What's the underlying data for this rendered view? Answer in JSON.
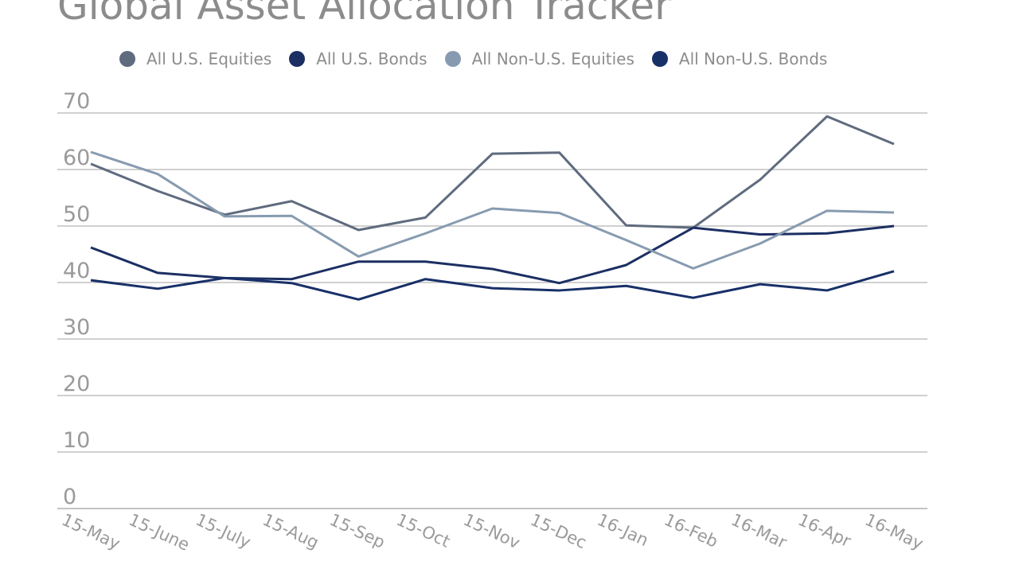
{
  "chart_data": {
    "type": "line",
    "title": "Global Asset Allocation Tracker",
    "categories": [
      "15-May",
      "15-June",
      "15-July",
      "15-Aug",
      "15-Sep",
      "15-Oct",
      "15-Nov",
      "15-Dec",
      "16-Jan",
      "16-Feb",
      "16-Mar",
      "16-Apr",
      "16-May"
    ],
    "ylim": [
      0,
      70
    ],
    "yticks": [
      0,
      10,
      20,
      30,
      40,
      50,
      60,
      70
    ],
    "grid": true,
    "legend_position": "top",
    "series": [
      {
        "name": "All U.S. Equities",
        "color": "#5f6b7e",
        "values": [
          61.0,
          56.2,
          52.0,
          54.4,
          49.3,
          51.5,
          62.8,
          63.0,
          50.1,
          49.7,
          58.2,
          69.4,
          64.5
        ]
      },
      {
        "name": "All U.S. Bonds",
        "color": "#1c2f63",
        "values": [
          46.2,
          41.7,
          40.8,
          40.6,
          43.7,
          43.7,
          42.4,
          39.9,
          43.1,
          49.7,
          48.5,
          48.7,
          50.0
        ]
      },
      {
        "name": "All Non-U.S. Equities",
        "color": "#879bb0",
        "values": [
          63.1,
          59.2,
          51.7,
          51.8,
          44.6,
          48.7,
          53.1,
          52.3,
          47.5,
          42.5,
          46.9,
          52.7,
          52.4
        ]
      },
      {
        "name": "All Non-U.S. Bonds",
        "color": "#183068",
        "values": [
          40.4,
          38.9,
          40.8,
          39.9,
          37.0,
          40.6,
          39.0,
          38.6,
          39.4,
          37.3,
          39.7,
          38.6,
          42.0
        ]
      }
    ]
  }
}
